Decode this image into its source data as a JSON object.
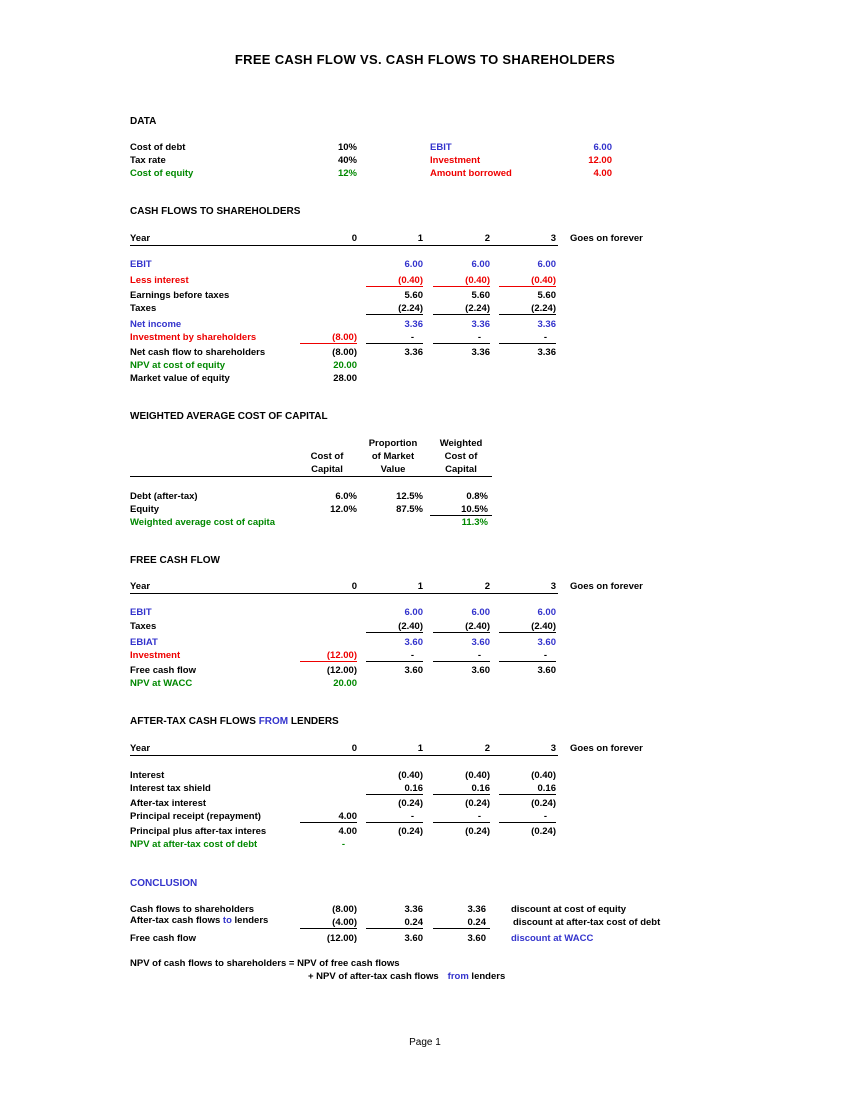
{
  "title": "FREE CASH FLOW VS. CASH FLOWS TO SHAREHOLDERS",
  "data_section": {
    "heading": "DATA",
    "left": [
      {
        "label": "Cost of debt",
        "value": "10%"
      },
      {
        "label": "Tax rate",
        "value": "40%"
      },
      {
        "label": "Cost of equity",
        "value": "12%"
      }
    ],
    "right": [
      {
        "label": "EBIT",
        "value": "6.00"
      },
      {
        "label": "Investment",
        "value": "12.00"
      },
      {
        "label": "Amount borrowed",
        "value": "4.00"
      }
    ]
  },
  "cfs": {
    "heading": "CASH FLOWS TO SHAREHOLDERS",
    "year_label": "Year",
    "years": [
      "0",
      "1",
      "2",
      "3"
    ],
    "forever": "Goes on forever",
    "rows": [
      {
        "label": "EBIT",
        "v0": "",
        "v1": "6.00",
        "v2": "6.00",
        "v3": "6.00"
      },
      {
        "label": "Less interest",
        "v0": "",
        "v1": "(0.40)",
        "v2": "(0.40)",
        "v3": "(0.40)"
      },
      {
        "label": "Earnings before taxes",
        "v0": "",
        "v1": "5.60",
        "v2": "5.60",
        "v3": "5.60"
      },
      {
        "label": "Taxes",
        "v0": "",
        "v1": "(2.24)",
        "v2": "(2.24)",
        "v3": "(2.24)"
      },
      {
        "label": "Net income",
        "v0": "",
        "v1": "3.36",
        "v2": "3.36",
        "v3": "3.36"
      },
      {
        "label": "Investment by shareholders",
        "v0": "(8.00)",
        "v1": "-",
        "v2": "-",
        "v3": "-"
      },
      {
        "label": "Net cash flow to shareholders",
        "v0": "(8.00)",
        "v1": "3.36",
        "v2": "3.36",
        "v3": "3.36"
      },
      {
        "label": "NPV at cost of equity",
        "v0": "20.00",
        "v1": "",
        "v2": "",
        "v3": ""
      },
      {
        "label": "Market value of equity",
        "v0": "28.00",
        "v1": "",
        "v2": "",
        "v3": ""
      }
    ]
  },
  "wacc": {
    "heading": "WEIGHTED AVERAGE COST OF CAPITAL",
    "headers": {
      "col1": [
        "",
        "Cost of",
        "Capital"
      ],
      "col2": [
        "Proportion",
        "of Market",
        "Value"
      ],
      "col3": [
        "Weighted",
        "Cost of",
        "Capital"
      ]
    },
    "rows": [
      {
        "label": "Debt (after-tax)",
        "c1": "6.0%",
        "c2": "12.5%",
        "c3": "0.8%"
      },
      {
        "label": "Equity",
        "c1": "12.0%",
        "c2": "87.5%",
        "c3": "10.5%"
      },
      {
        "label": "Weighted average cost of capita",
        "c1": "",
        "c2": "",
        "c3": "11.3%"
      }
    ]
  },
  "fcf": {
    "heading": "FREE CASH FLOW",
    "year_label": "Year",
    "years": [
      "0",
      "1",
      "2",
      "3"
    ],
    "forever": "Goes on forever",
    "rows": [
      {
        "label": "EBIT",
        "v0": "",
        "v1": "6.00",
        "v2": "6.00",
        "v3": "6.00"
      },
      {
        "label": "Taxes",
        "v0": "",
        "v1": "(2.40)",
        "v2": "(2.40)",
        "v3": "(2.40)"
      },
      {
        "label": "EBIAT",
        "v0": "",
        "v1": "3.60",
        "v2": "3.60",
        "v3": "3.60"
      },
      {
        "label": "Investment",
        "v0": "(12.00)",
        "v1": "-",
        "v2": "-",
        "v3": "-"
      },
      {
        "label": "Free cash flow",
        "v0": "(12.00)",
        "v1": "3.60",
        "v2": "3.60",
        "v3": "3.60"
      },
      {
        "label": "NPV at WACC",
        "v0": "20.00",
        "v1": "",
        "v2": "",
        "v3": ""
      }
    ]
  },
  "lenders": {
    "heading_pre": "AFTER-TAX CASH FLOWS ",
    "heading_from": "FROM",
    "heading_post": " LENDERS",
    "year_label": "Year",
    "years": [
      "0",
      "1",
      "2",
      "3"
    ],
    "forever": "Goes on forever",
    "rows": [
      {
        "label": "Interest",
        "v0": "",
        "v1": "(0.40)",
        "v2": "(0.40)",
        "v3": "(0.40)"
      },
      {
        "label": "Interest tax shield",
        "v0": "",
        "v1": "0.16",
        "v2": "0.16",
        "v3": "0.16"
      },
      {
        "label": "After-tax interest",
        "v0": "",
        "v1": "(0.24)",
        "v2": "(0.24)",
        "v3": "(0.24)"
      },
      {
        "label": "Principal receipt (repayment)",
        "v0": "4.00",
        "v1": "-",
        "v2": "-",
        "v3": "-"
      },
      {
        "label": "Principal plus after-tax interes",
        "v0": "4.00",
        "v1": "(0.24)",
        "v2": "(0.24)",
        "v3": "(0.24)"
      },
      {
        "label": "NPV at after-tax cost of debt",
        "v0": "-",
        "v1": "",
        "v2": "",
        "v3": ""
      }
    ]
  },
  "conclusion": {
    "heading": "CONCLUSION",
    "rows": [
      {
        "label": "Cash flows to shareholders",
        "label_to": "",
        "label_post": "",
        "c1": "(8.00)",
        "c2": "3.36",
        "c3": "3.36",
        "note": "discount at cost of equity"
      },
      {
        "label": "After-tax cash flows ",
        "label_to": "to",
        "label_post": " lenders",
        "c1": "(4.00)",
        "c2": "0.24",
        "c3": "0.24",
        "note": "discount at after-tax cost of debt"
      },
      {
        "label": "Free cash flow",
        "label_to": "",
        "label_post": "",
        "c1": "(12.00)",
        "c2": "3.60",
        "c3": "3.60",
        "note": "discount at WACC"
      }
    ],
    "npv_line1": "NPV of cash flows to shareholders = NPV of free cash flows",
    "npv_line2_pre": "+ NPV of after-tax cash flows",
    "npv_line2_from": "from",
    "npv_line2_post": " lenders"
  },
  "footer": "Page 1",
  "colors": {
    "blue": "#3333cc",
    "red": "#ee0000",
    "green": "#008800"
  }
}
